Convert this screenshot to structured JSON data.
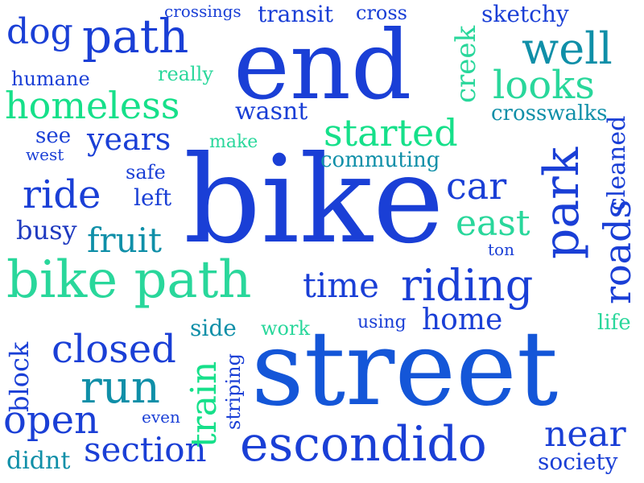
{
  "palette": {
    "blue": "#1a3fd6",
    "navy": "#1f3ac0",
    "royal": "#1456d8",
    "teal": "#0f8fa8",
    "green": "#16e08a",
    "mint": "#29d79b"
  },
  "words": {
    "end": "end",
    "bike": "bike",
    "street": "street",
    "bike_path": "bike path",
    "escondido": "escondido",
    "homeless": "homeless",
    "path": "path",
    "dog": "dog",
    "started": "started",
    "riding": "riding",
    "park": "park",
    "roads": "roads",
    "cleaned": "cleaned",
    "creek": "creek",
    "well": "well",
    "looks": "looks",
    "ride": "ride",
    "car": "car",
    "east": "east",
    "fruit": "fruit",
    "time": "time",
    "closed": "closed",
    "run": "run",
    "open": "open",
    "section": "section",
    "near": "near",
    "home": "home",
    "train": "train",
    "years": "years",
    "humane": "humane",
    "crossings": "crossings",
    "transit": "transit",
    "cross": "cross",
    "sketchy": "sketchy",
    "really": "really",
    "wasnt": "wasnt",
    "crosswalks": "crosswalks",
    "see": "see",
    "west": "west",
    "make": "make",
    "commuting": "commuting",
    "safe": "safe",
    "left": "left",
    "busy": "busy",
    "ton": "ton",
    "side": "side",
    "work": "work",
    "using": "using",
    "life": "life",
    "block": "block",
    "striping": "striping",
    "even": "even",
    "didnt": "didnt",
    "society": "society"
  }
}
